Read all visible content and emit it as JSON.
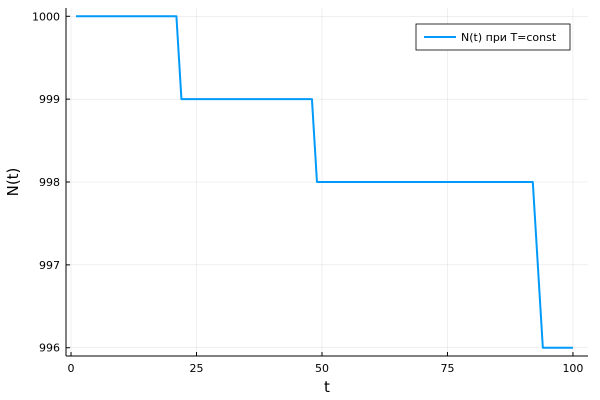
{
  "chart_data": {
    "type": "line",
    "xlabel": "t",
    "ylabel": "N(t)",
    "xlim": [
      -1,
      103
    ],
    "ylim": [
      995.9,
      1000.1
    ],
    "xticks": [
      0,
      25,
      50,
      75,
      100
    ],
    "yticks": [
      996,
      997,
      998,
      999,
      1000
    ],
    "grid": true,
    "legend_position": "top-right",
    "series": [
      {
        "name": "N(t) при T=const",
        "color": "#009AFA",
        "x": [
          1,
          21,
          22,
          48,
          49,
          92,
          94,
          100
        ],
        "y": [
          1000,
          1000,
          999,
          999,
          998,
          998,
          996,
          996
        ]
      }
    ]
  }
}
